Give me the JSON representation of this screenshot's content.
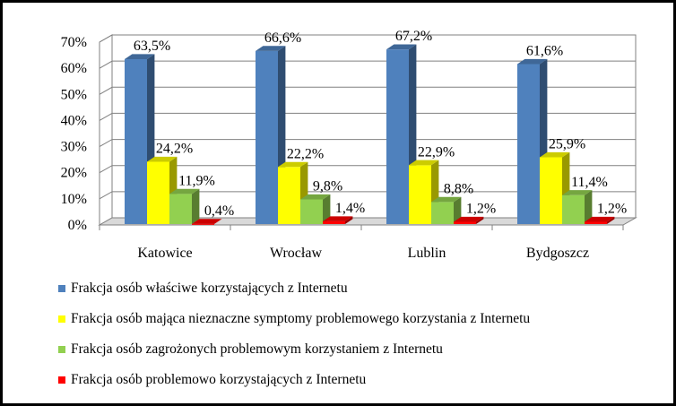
{
  "chart_data": {
    "type": "bar",
    "categories": [
      "Katowice",
      "Wrocław",
      "Lublin",
      "Bydgoszcz"
    ],
    "series": [
      {
        "name": "Frakcja osób właściwe korzystających  z Internetu",
        "color": "#4f81bd",
        "values": [
          63.5,
          66.6,
          67.2,
          61.6
        ],
        "labels": [
          "63,5%",
          "66,6%",
          "67,2%",
          "61,6%"
        ]
      },
      {
        "name": "Frakcja osób mająca nieznaczne symptomy problemowego korzystania z Internetu",
        "color": "#ffff00",
        "values": [
          24.2,
          22.2,
          22.9,
          25.9
        ],
        "labels": [
          "24,2%",
          "22,2%",
          "22,9%",
          "25,9%"
        ]
      },
      {
        "name": "Frakcja osób zagrożonych problemowym korzystaniem z Internetu",
        "color": "#92d050",
        "values": [
          11.9,
          9.8,
          8.8,
          11.4
        ],
        "labels": [
          "11,9%",
          "9,8%",
          "8,8%",
          "11,4%"
        ]
      },
      {
        "name": "Frakcja osób problemowo korzystających z Internetu",
        "color": "#ff0000",
        "values": [
          0.4,
          1.4,
          1.2,
          1.2
        ],
        "labels": [
          "0,4%",
          "1,4%",
          "1,2%",
          "1,2%"
        ]
      }
    ],
    "yticks": [
      "0%",
      "10%",
      "20%",
      "30%",
      "40%",
      "50%",
      "60%",
      "70%"
    ],
    "ylim": [
      0,
      70
    ],
    "grid": true,
    "legend_position": "bottom",
    "style": "3d-column"
  }
}
